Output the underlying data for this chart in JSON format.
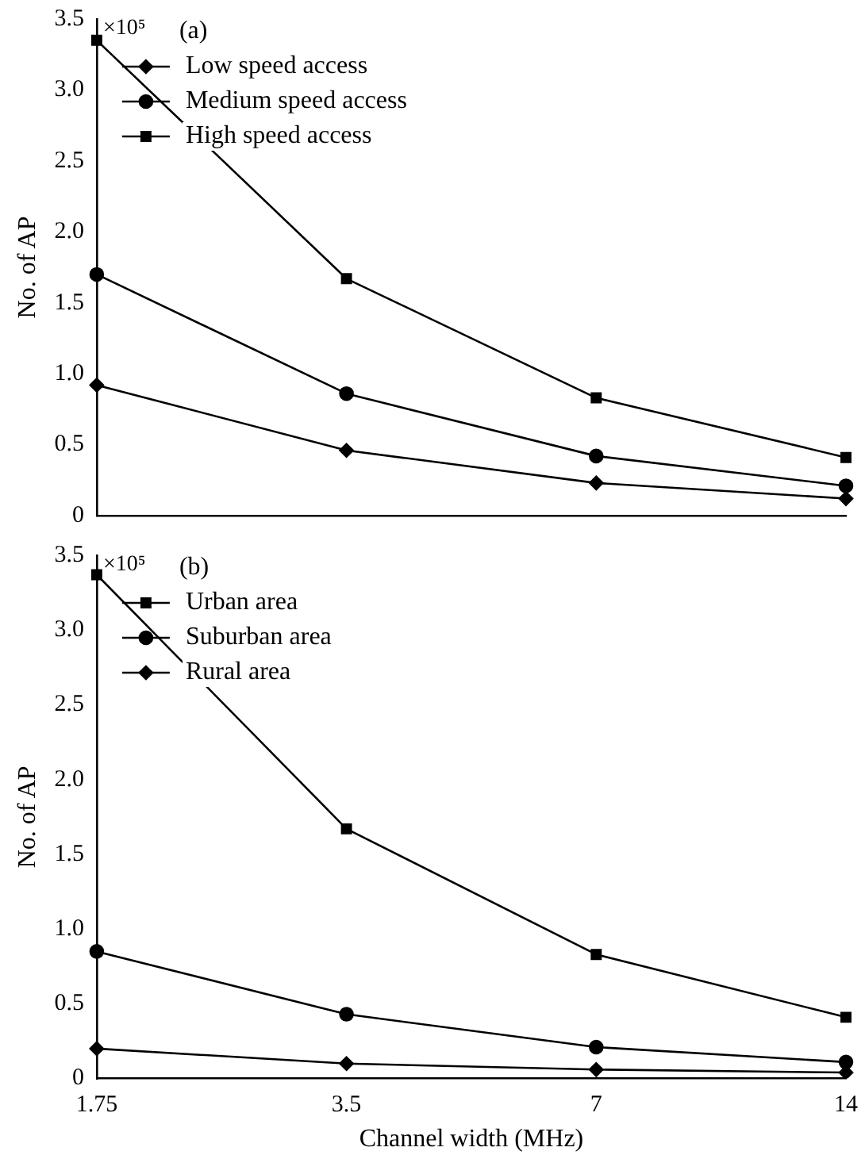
{
  "chart_data": [
    {
      "type": "line",
      "title": "(a)",
      "ylabel": "No. of AP",
      "annotations": [
        "×10⁵"
      ],
      "categories": [
        "1.75",
        "3.5",
        "7",
        "14"
      ],
      "tick_labels": "y",
      "ylim": [
        0,
        3.5
      ],
      "yticks": [
        0,
        {
          "value": 0.5,
          "label": "0.5"
        },
        {
          "value": 1,
          "label": "1.0"
        },
        {
          "value": 1.5,
          "label": "1.5"
        },
        {
          "value": 2,
          "label": "2.0"
        },
        {
          "value": 2.5,
          "label": "2.5"
        },
        {
          "value": 3,
          "label": "3.0"
        },
        {
          "value": 3.5,
          "label": "3.5"
        }
      ],
      "grid": false,
      "legend": "top left",
      "line_style": "solid",
      "series": [
        {
          "name": "Low speed access",
          "color": "#000000",
          "marker": "diamond",
          "values": [
            0.92,
            0.46,
            0.23,
            0.12
          ]
        },
        {
          "name": "Medium speed access",
          "color": "#000000",
          "marker": "circle",
          "values": [
            1.7,
            0.86,
            0.42,
            0.21
          ]
        },
        {
          "name": "High speed access",
          "color": "#000000",
          "marker": "square",
          "values": [
            3.35,
            1.67,
            0.83,
            0.41
          ]
        }
      ]
    },
    {
      "type": "line",
      "title": "(b)",
      "ylabel": "No. of AP",
      "xlabel": "Channel width (MHz)",
      "annotations": [
        "×10⁵"
      ],
      "categories": [
        "1.75",
        "3.5",
        "7",
        "14"
      ],
      "ylim": [
        0,
        3.5
      ],
      "yticks": [
        0,
        {
          "value": 0.5,
          "label": "0.5"
        },
        {
          "value": 1,
          "label": "1.0"
        },
        {
          "value": 1.5,
          "label": "1.5"
        },
        {
          "value": 2,
          "label": "2.0"
        },
        {
          "value": 2.5,
          "label": "2.5"
        },
        {
          "value": 3,
          "label": "3.0"
        },
        {
          "value": 3.5,
          "label": "3.5"
        }
      ],
      "grid": false,
      "legend": "top left",
      "line_style": "solid",
      "series": [
        {
          "name": "Urban area",
          "color": "#000000",
          "marker": "square",
          "values": [
            3.37,
            1.67,
            0.83,
            0.41
          ]
        },
        {
          "name": "Suburban area",
          "color": "#000000",
          "marker": "circle",
          "values": [
            0.85,
            0.43,
            0.21,
            0.11
          ]
        },
        {
          "name": "Rural area",
          "color": "#000000",
          "marker": "diamond",
          "values": [
            0.2,
            0.1,
            0.06,
            0.04
          ]
        }
      ]
    }
  ]
}
